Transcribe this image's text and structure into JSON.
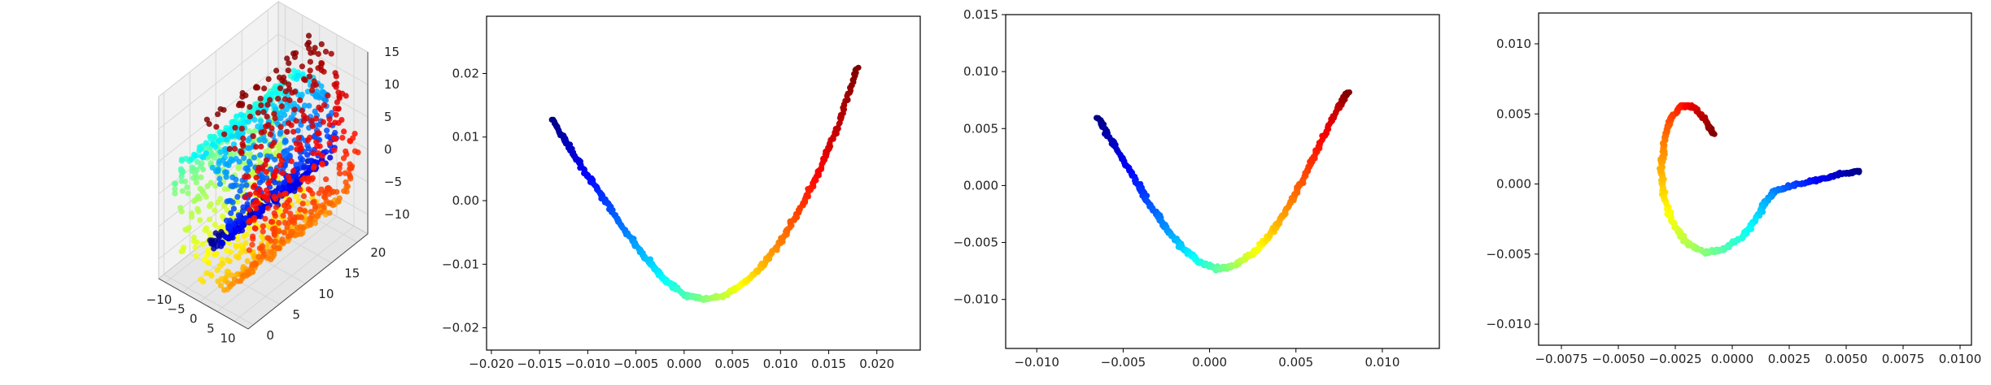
{
  "chart_data": [
    {
      "type": "scatter",
      "projection": "3d",
      "title": "",
      "xlabel": "",
      "ylabel": "",
      "zlabel": "",
      "xlim": [
        -12,
        14
      ],
      "ylim": [
        -1,
        22
      ],
      "zlim": [
        -13,
        15
      ],
      "xticks": [
        "−10",
        "−5",
        "0",
        "5",
        "10"
      ],
      "yticks": [
        "0",
        "5",
        "10",
        "15",
        "20"
      ],
      "zticks": [
        "−10",
        "−5",
        "0",
        "5",
        "10",
        "15"
      ],
      "grid": true,
      "colormap": "jet",
      "shape": "swiss-roll",
      "n_points": 1500
    },
    {
      "type": "scatter",
      "title": "",
      "xlabel": "",
      "ylabel": "",
      "xlim": [
        -0.0205,
        0.0245
      ],
      "ylim": [
        -0.0235,
        0.029
      ],
      "xticks": [
        "−0.020",
        "−0.015",
        "−0.010",
        "−0.005",
        "0.000",
        "0.005",
        "0.010",
        "0.015",
        "0.020"
      ],
      "yticks": [
        "−0.02",
        "−0.01",
        "0.00",
        "0.01",
        "0.02"
      ],
      "colormap": "jet",
      "series": [
        {
          "color_by": "position along curve",
          "x": [
            -0.0137,
            -0.012,
            -0.01,
            -0.008,
            -0.006,
            -0.004,
            -0.002,
            0.0,
            0.002,
            0.004,
            0.006,
            0.008,
            0.01,
            0.012,
            0.014,
            0.016,
            0.018
          ],
          "y": [
            0.0128,
            0.0085,
            0.004,
            -0.0005,
            -0.005,
            -0.009,
            -0.0125,
            -0.0148,
            -0.0155,
            -0.015,
            -0.0132,
            -0.0105,
            -0.0065,
            -0.0015,
            0.0045,
            0.012,
            0.021
          ]
        }
      ]
    },
    {
      "type": "scatter",
      "title": "",
      "xlabel": "",
      "ylabel": "",
      "xlim": [
        -0.0118,
        0.0133
      ],
      "ylim": [
        -0.0143,
        0.015
      ],
      "xticks": [
        "−0.010",
        "−0.005",
        "0.000",
        "0.005",
        "0.010"
      ],
      "yticks": [
        "−0.010",
        "−0.005",
        "0.000",
        "0.005",
        "0.010",
        "0.015"
      ],
      "colormap": "jet",
      "series": [
        {
          "color_by": "position along curve",
          "x": [
            -0.0065,
            -0.0055,
            -0.0045,
            -0.0035,
            -0.0025,
            -0.0015,
            -0.0005,
            0.0005,
            0.0015,
            0.0025,
            0.0035,
            0.0045,
            0.0055,
            0.0065,
            0.0075,
            0.008
          ],
          "y": [
            0.006,
            0.0035,
            0.001,
            -0.0015,
            -0.0038,
            -0.0056,
            -0.0068,
            -0.0073,
            -0.007,
            -0.006,
            -0.0043,
            -0.002,
            0.0008,
            0.004,
            0.007,
            0.0082
          ]
        }
      ]
    },
    {
      "type": "scatter",
      "title": "",
      "xlabel": "",
      "ylabel": "",
      "xlim": [
        -0.0085,
        0.0105
      ],
      "ylim": [
        -0.0115,
        0.0122
      ],
      "xticks": [
        "−0.0075",
        "−0.0050",
        "−0.0025",
        "0.0000",
        "0.0025",
        "0.0050",
        "0.0075",
        "0.0100"
      ],
      "yticks": [
        "−0.010",
        "−0.005",
        "0.000",
        "0.005",
        "0.010"
      ],
      "colormap": "jet",
      "series": [
        {
          "color_by": "position along curve",
          "x": [
            0.0056,
            0.0048,
            0.004,
            0.0032,
            0.0024,
            0.0018,
            0.0014,
            0.001,
            0.0004,
            -0.0004,
            -0.0012,
            -0.002,
            -0.0026,
            -0.003,
            -0.0031,
            -0.003,
            -0.0027,
            -0.0022,
            -0.0017,
            -0.0012,
            -0.0008
          ],
          "y": [
            0.0009,
            0.0007,
            0.0004,
            0.0001,
            -0.0002,
            -0.0006,
            -0.0014,
            -0.0026,
            -0.0038,
            -0.0047,
            -0.0049,
            -0.0042,
            -0.0028,
            -0.001,
            0.001,
            0.003,
            0.0047,
            0.0056,
            0.0055,
            0.0046,
            0.0035
          ]
        }
      ]
    }
  ]
}
